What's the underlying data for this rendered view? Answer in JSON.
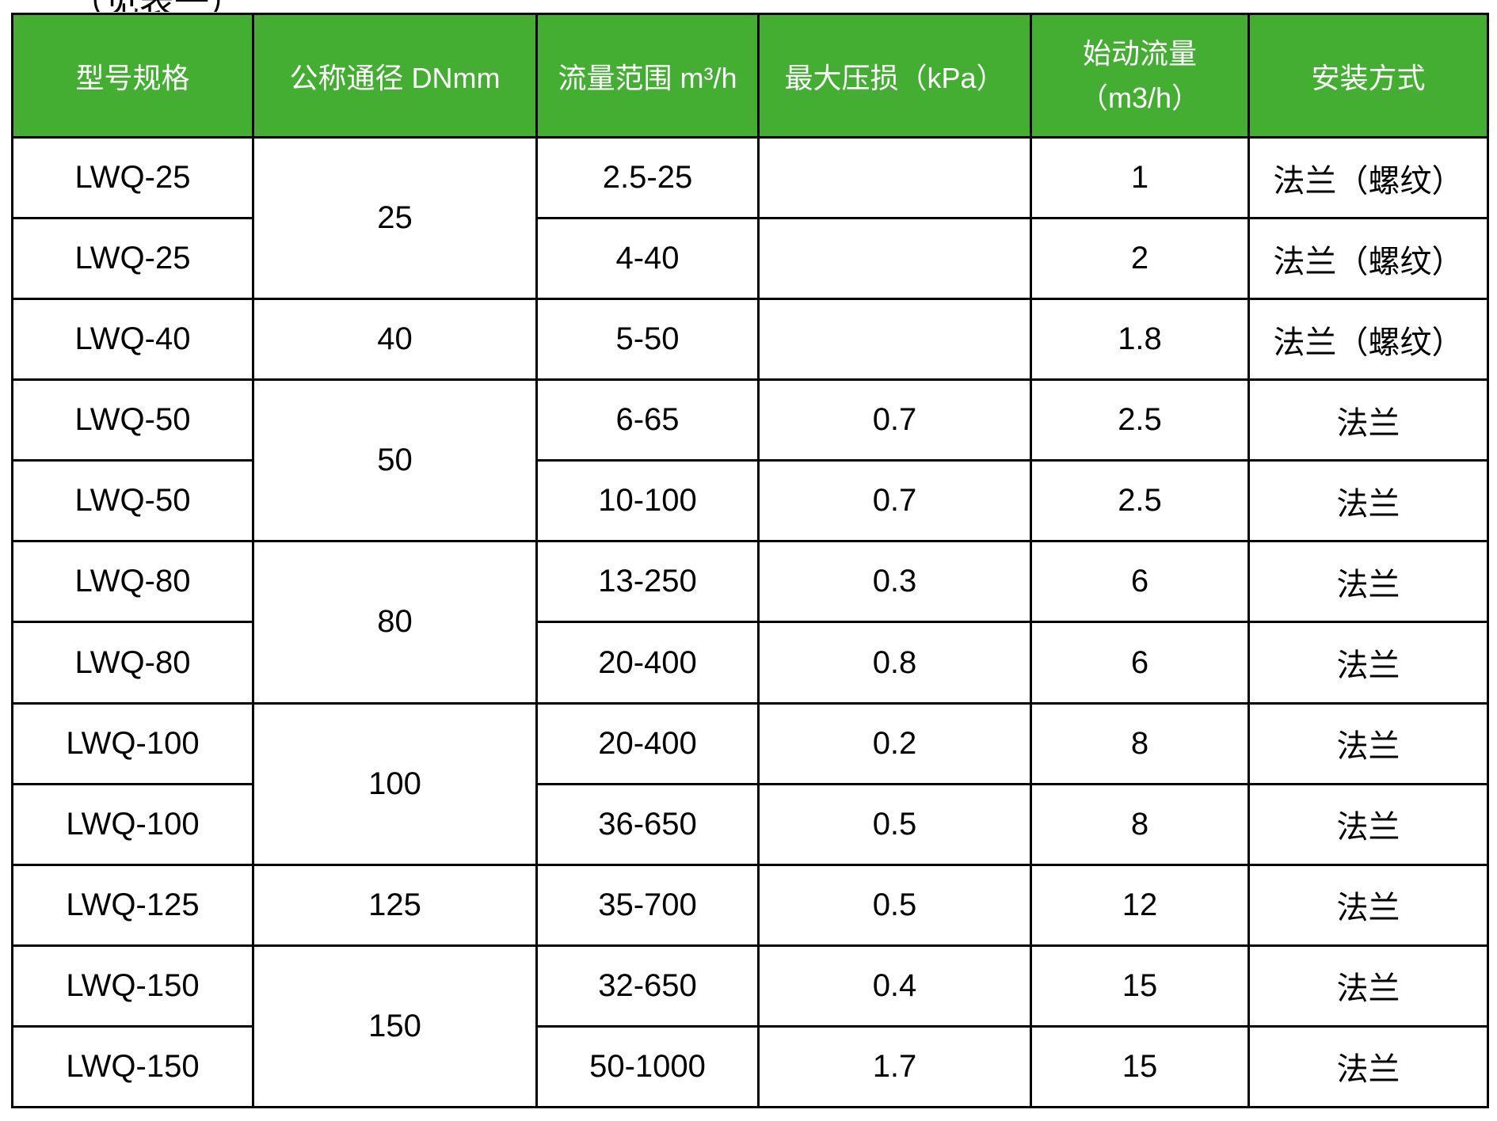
{
  "caption": {
    "text": "（见表一）"
  },
  "colors": {
    "header_bg": "#44AE33",
    "header_text": "#FFFFFF",
    "border": "#000000",
    "body_text": "#000000"
  },
  "table": {
    "headers": {
      "model": "型号规格",
      "dn": "公称通径 DNmm",
      "flow_range": "流量范围 m³/h",
      "max_pressure_loss": "最大压损（kPa）",
      "startup_flow_line1": "始动流量",
      "startup_flow_line2": "（m3/h）",
      "installation": "安装方式"
    },
    "rows": [
      {
        "model": "LWQ-25",
        "dn": "25",
        "dn_span": 2,
        "flow_range": "2.5-25",
        "max_pressure_loss": "",
        "startup_flow": "1",
        "installation": "法兰（螺纹）"
      },
      {
        "model": "LWQ-25",
        "dn": null,
        "dn_span": 0,
        "flow_range": "4-40",
        "max_pressure_loss": "",
        "startup_flow": "2",
        "installation": "法兰（螺纹）"
      },
      {
        "model": "LWQ-40",
        "dn": "40",
        "dn_span": 1,
        "flow_range": "5-50",
        "max_pressure_loss": "",
        "startup_flow": "1.8",
        "installation": "法兰（螺纹）"
      },
      {
        "model": "LWQ-50",
        "dn": "50",
        "dn_span": 2,
        "flow_range": "6-65",
        "max_pressure_loss": "0.7",
        "startup_flow": "2.5",
        "installation": "法兰"
      },
      {
        "model": "LWQ-50",
        "dn": null,
        "dn_span": 0,
        "flow_range": "10-100",
        "max_pressure_loss": "0.7",
        "startup_flow": "2.5",
        "installation": "法兰"
      },
      {
        "model": "LWQ-80",
        "dn": "80",
        "dn_span": 2,
        "flow_range": "13-250",
        "max_pressure_loss": "0.3",
        "startup_flow": "6",
        "installation": "法兰"
      },
      {
        "model": "LWQ-80",
        "dn": null,
        "dn_span": 0,
        "flow_range": "20-400",
        "max_pressure_loss": "0.8",
        "startup_flow": "6",
        "installation": "法兰"
      },
      {
        "model": "LWQ-100",
        "dn": "100",
        "dn_span": 2,
        "flow_range": "20-400",
        "max_pressure_loss": "0.2",
        "startup_flow": "8",
        "installation": "法兰"
      },
      {
        "model": "LWQ-100",
        "dn": null,
        "dn_span": 0,
        "flow_range": "36-650",
        "max_pressure_loss": "0.5",
        "startup_flow": "8",
        "installation": "法兰"
      },
      {
        "model": "LWQ-125",
        "dn": "125",
        "dn_span": 1,
        "flow_range": "35-700",
        "max_pressure_loss": "0.5",
        "startup_flow": "12",
        "installation": "法兰"
      },
      {
        "model": "LWQ-150",
        "dn": "150",
        "dn_span": 2,
        "flow_range": "32-650",
        "max_pressure_loss": "0.4",
        "startup_flow": "15",
        "installation": "法兰"
      },
      {
        "model": "LWQ-150",
        "dn": null,
        "dn_span": 0,
        "flow_range": "50-1000",
        "max_pressure_loss": "1.7",
        "startup_flow": "15",
        "installation": "法兰"
      }
    ]
  }
}
